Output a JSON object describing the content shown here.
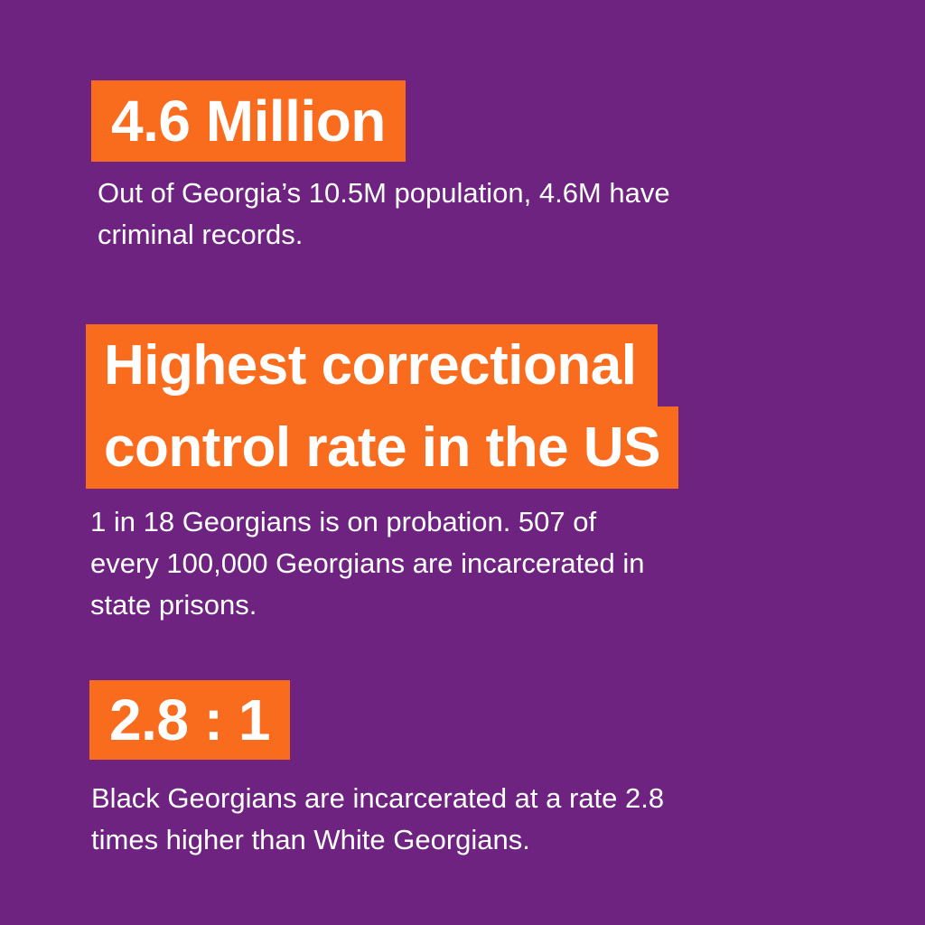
{
  "colors": {
    "background": "#6f2380",
    "highlight": "#f96c1d",
    "text": "#ffffff"
  },
  "stats": [
    {
      "headline": "4.6 Million",
      "description_lines": [
        "Out of Georgia’s 10.5M population, 4.6M have",
        "criminal records."
      ]
    },
    {
      "headline_lines": [
        "Highest correctional",
        "control rate in the US"
      ],
      "description_lines": [
        "1 in 18 Georgians is on probation. 507 of",
        "every 100,000 Georgians are incarcerated in",
        "state prisons."
      ]
    },
    {
      "headline": "2.8 : 1",
      "description_lines": [
        "Black Georgians are incarcerated at a rate 2.8",
        "times higher than White Georgians."
      ]
    }
  ]
}
